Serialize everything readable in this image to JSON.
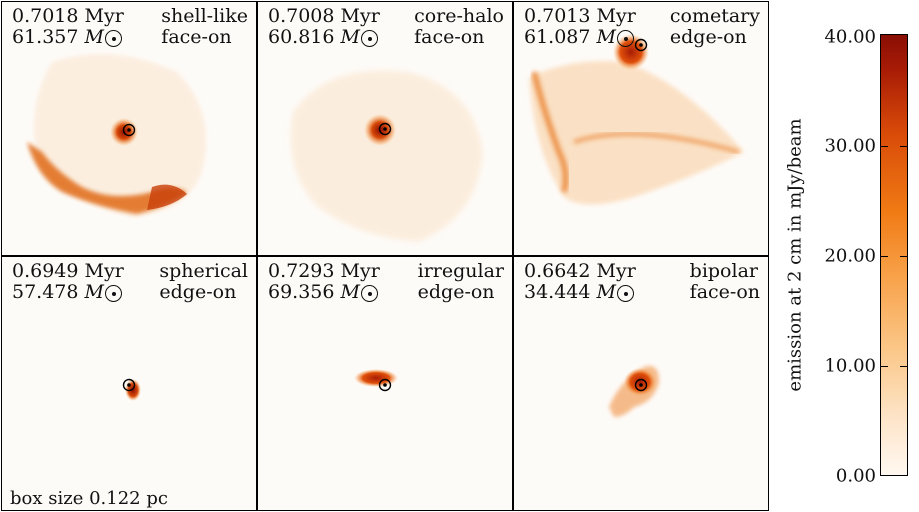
{
  "panels": [
    {
      "time": "0.7018 Myr",
      "mass": "61.357",
      "morphology": "shell-like",
      "view": "face-on"
    },
    {
      "time": "0.7008 Myr",
      "mass": "60.816",
      "morphology": "core-halo",
      "view": "face-on"
    },
    {
      "time": "0.7013 Myr",
      "mass": "61.087",
      "morphology": "cometary",
      "view": "edge-on"
    },
    {
      "time": "0.6949 Myr",
      "mass": "57.478",
      "morphology": "spherical",
      "view": "edge-on"
    },
    {
      "time": "0.7293 Myr",
      "mass": "69.356",
      "morphology": "irregular",
      "view": "edge-on"
    },
    {
      "time": "0.6642 Myr",
      "mass": "34.444",
      "morphology": "bipolar",
      "view": "face-on"
    }
  ],
  "mass_unit": "M",
  "box_size": "box size 0.122 pc",
  "colorbar": {
    "title": "emission at 2 cm in mJy/beam",
    "ticks": [
      "40.00",
      "30.00",
      "20.00",
      "10.00",
      "0.00"
    ],
    "range": [
      0,
      40
    ]
  }
}
